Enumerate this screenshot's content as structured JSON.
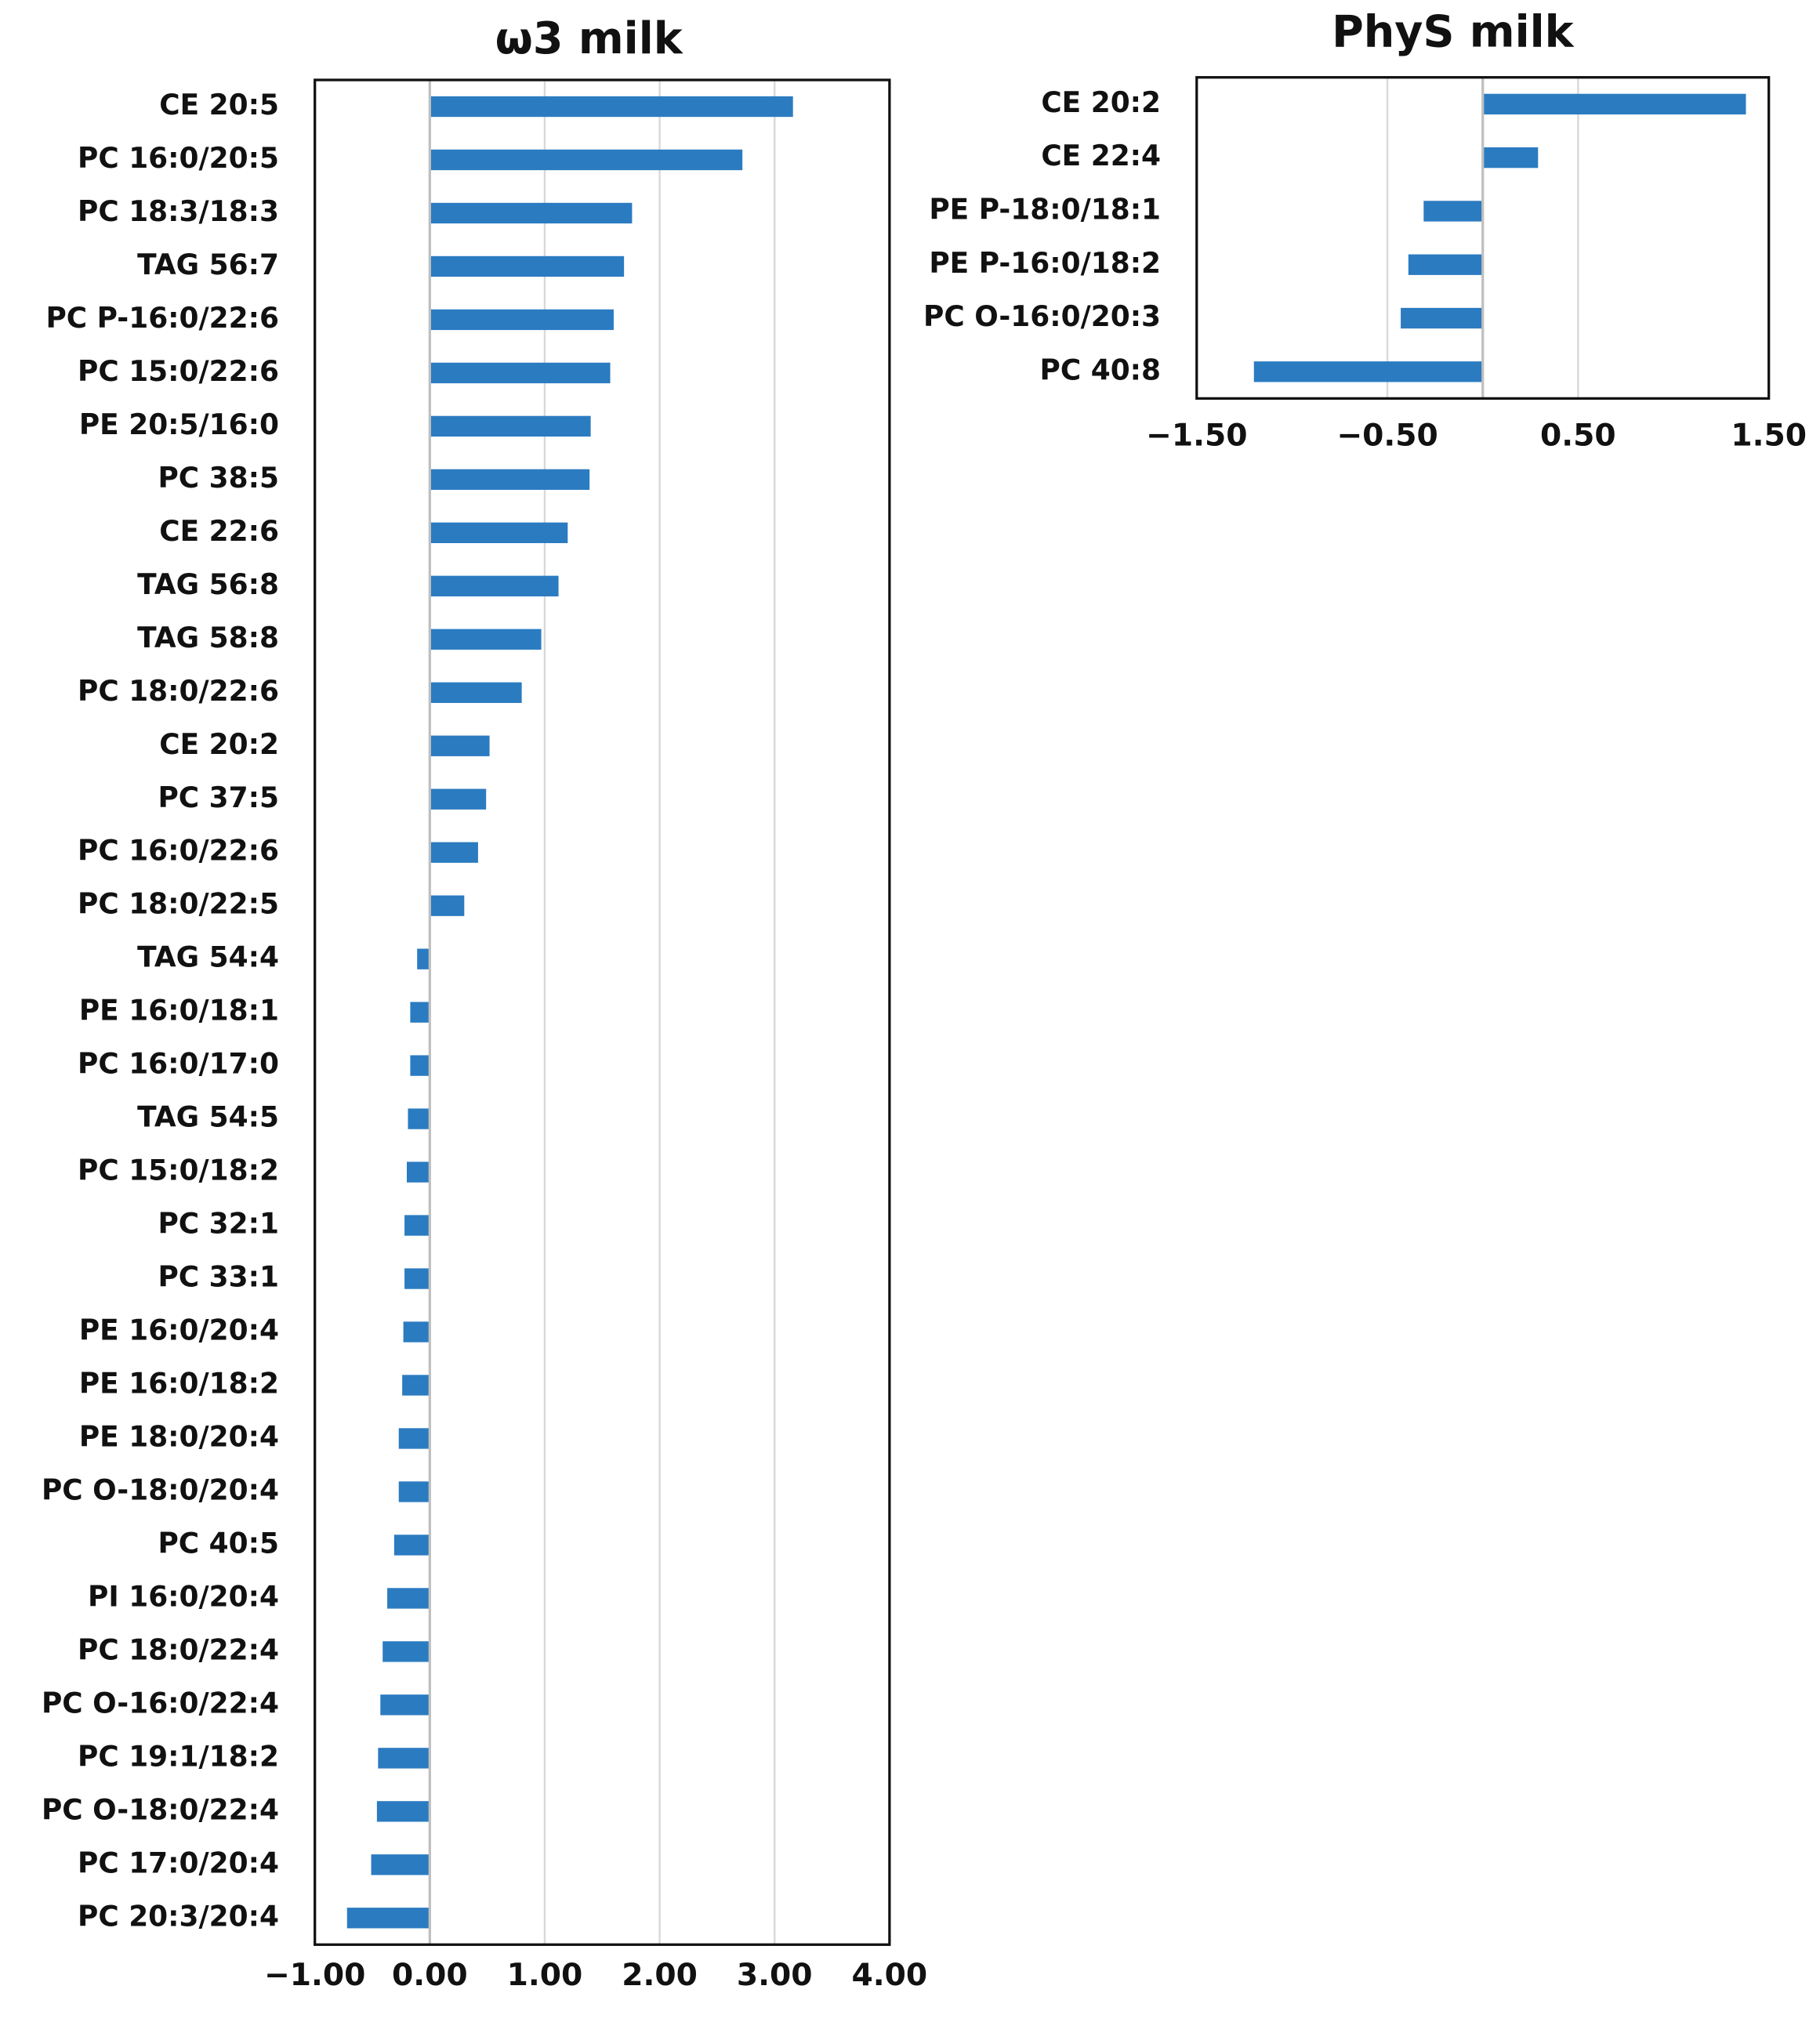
{
  "chart_data": [
    {
      "type": "bar",
      "orientation": "horizontal",
      "title": "ω3 milk",
      "color": "#2b7bc1",
      "grid": true,
      "categories": [
        "CE 20:5",
        "PC 16:0/20:5",
        "PC 18:3/18:3",
        "TAG 56:7",
        "PC P-16:0/22:6",
        "PC 15:0/22:6",
        "PE 20:5/16:0",
        "PC 38:5",
        "CE 22:6",
        "TAG 56:8",
        "TAG 58:8",
        "PC 18:0/22:6",
        "CE 20:2",
        "PC 37:5",
        "PC 16:0/22:6",
        "PC 18:0/22:5",
        "TAG 54:4",
        "PE 16:0/18:1",
        "PC 16:0/17:0",
        "TAG 54:5",
        "PC 15:0/18:2",
        "PC 32:1",
        "PC 33:1",
        "PE 16:0/20:4",
        "PE 16:0/18:2",
        "PE 18:0/20:4",
        "PC O-18:0/20:4",
        "PC 40:5",
        "PI 16:0/20:4",
        "PC 18:0/22:4",
        "PC O-16:0/22:4",
        "PC 19:1/18:2",
        "PC O-18:0/22:4",
        "PC 17:0/20:4",
        "PC 20:3/20:4"
      ],
      "values": [
        3.16,
        2.72,
        1.76,
        1.69,
        1.6,
        1.57,
        1.4,
        1.39,
        1.2,
        1.12,
        0.97,
        0.8,
        0.52,
        0.49,
        0.42,
        0.3,
        -0.11,
        -0.17,
        -0.17,
        -0.19,
        -0.2,
        -0.22,
        -0.22,
        -0.23,
        -0.24,
        -0.27,
        -0.27,
        -0.31,
        -0.37,
        -0.41,
        -0.43,
        -0.45,
        -0.46,
        -0.51,
        -0.72
      ],
      "xlim": [
        -1,
        4
      ],
      "xticks": [
        {
          "value": -1,
          "label": "−1.00"
        },
        {
          "value": 0,
          "label": "0.00"
        },
        {
          "value": 1,
          "label": "1.00"
        },
        {
          "value": 2,
          "label": "2.00"
        },
        {
          "value": 3,
          "label": "3.00"
        },
        {
          "value": 4,
          "label": "4.00"
        }
      ]
    },
    {
      "type": "bar",
      "orientation": "horizontal",
      "title": "PhyS milk",
      "color": "#2b7bc1",
      "grid": true,
      "categories": [
        "CE 20:2",
        "CE 22:4",
        "PE P-18:0/18:1",
        "PE P-16:0/18:2",
        "PC O-16:0/20:3",
        "PC 40:8"
      ],
      "values": [
        1.38,
        0.29,
        -0.31,
        -0.39,
        -0.43,
        -1.2
      ],
      "xlim": [
        -1.5,
        1.5
      ],
      "xticks": [
        {
          "value": -1.5,
          "label": "−1.50"
        },
        {
          "value": -0.5,
          "label": "−0.50"
        },
        {
          "value": 0.5,
          "label": "0.50"
        },
        {
          "value": 1.5,
          "label": "1.50"
        }
      ]
    }
  ]
}
